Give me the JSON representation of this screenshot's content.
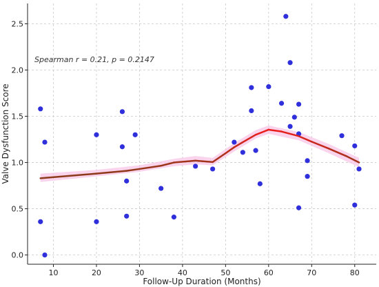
{
  "chart_data": {
    "type": "scatter",
    "title": "",
    "xlabel": "Follow-Up Duration (Months)",
    "ylabel": "Valve Dysfunction Score",
    "xlim": [
      4,
      85
    ],
    "ylim": [
      -0.1,
      2.72
    ],
    "xticks": [
      10,
      20,
      30,
      40,
      50,
      60,
      70,
      80
    ],
    "yticks": [
      0.0,
      0.5,
      1.0,
      1.5,
      2.0,
      2.5
    ],
    "ytick_labels": [
      "0.0",
      "0.5",
      "1.0",
      "1.5",
      "2.0",
      "2.5"
    ],
    "grid": true,
    "annotation": "Spearman r = 0.21, p = 0.2147",
    "point_color": "#2f2fdc",
    "points": [
      {
        "x": 7,
        "y": 1.58
      },
      {
        "x": 8,
        "y": 1.22
      },
      {
        "x": 7,
        "y": 0.36
      },
      {
        "x": 8,
        "y": 0.0
      },
      {
        "x": 20,
        "y": 1.3
      },
      {
        "x": 20,
        "y": 0.36
      },
      {
        "x": 26,
        "y": 1.55
      },
      {
        "x": 26,
        "y": 1.17
      },
      {
        "x": 27,
        "y": 0.8
      },
      {
        "x": 27,
        "y": 0.42
      },
      {
        "x": 29,
        "y": 1.3
      },
      {
        "x": 35,
        "y": 0.72
      },
      {
        "x": 38,
        "y": 0.41
      },
      {
        "x": 43,
        "y": 0.96
      },
      {
        "x": 47,
        "y": 0.93
      },
      {
        "x": 52,
        "y": 1.22
      },
      {
        "x": 54,
        "y": 1.11
      },
      {
        "x": 56,
        "y": 1.81
      },
      {
        "x": 56,
        "y": 1.56
      },
      {
        "x": 57,
        "y": 1.13
      },
      {
        "x": 58,
        "y": 0.77
      },
      {
        "x": 60,
        "y": 1.82
      },
      {
        "x": 63,
        "y": 1.64
      },
      {
        "x": 64,
        "y": 2.58
      },
      {
        "x": 65,
        "y": 2.08
      },
      {
        "x": 65,
        "y": 1.39
      },
      {
        "x": 66,
        "y": 1.49
      },
      {
        "x": 67,
        "y": 1.63
      },
      {
        "x": 67,
        "y": 1.31
      },
      {
        "x": 67,
        "y": 0.51
      },
      {
        "x": 69,
        "y": 1.02
      },
      {
        "x": 69,
        "y": 0.85
      },
      {
        "x": 77,
        "y": 1.29
      },
      {
        "x": 80,
        "y": 1.18
      },
      {
        "x": 80,
        "y": 0.54
      },
      {
        "x": 81,
        "y": 0.93
      }
    ],
    "trend": {
      "colors": {
        "low": "#8b3a1a",
        "high": "#ee1c1c",
        "band": "#f7c6e6"
      },
      "points": [
        {
          "x": 7,
          "y": 0.83
        },
        {
          "x": 20,
          "y": 0.88
        },
        {
          "x": 27,
          "y": 0.91
        },
        {
          "x": 30,
          "y": 0.93
        },
        {
          "x": 35,
          "y": 0.965
        },
        {
          "x": 38,
          "y": 1.0
        },
        {
          "x": 43,
          "y": 1.02
        },
        {
          "x": 47,
          "y": 1.005
        },
        {
          "x": 50,
          "y": 1.1
        },
        {
          "x": 52,
          "y": 1.165
        },
        {
          "x": 54,
          "y": 1.22
        },
        {
          "x": 57,
          "y": 1.3
        },
        {
          "x": 60,
          "y": 1.355
        },
        {
          "x": 63,
          "y": 1.335
        },
        {
          "x": 67,
          "y": 1.285
        },
        {
          "x": 70,
          "y": 1.225
        },
        {
          "x": 74,
          "y": 1.15
        },
        {
          "x": 78,
          "y": 1.07
        },
        {
          "x": 81,
          "y": 1.0
        }
      ],
      "band": [
        {
          "x": 7,
          "lo": 0.79,
          "hi": 0.88
        },
        {
          "x": 20,
          "lo": 0.85,
          "hi": 0.92
        },
        {
          "x": 30,
          "lo": 0.9,
          "hi": 0.97
        },
        {
          "x": 38,
          "lo": 0.96,
          "hi": 1.04
        },
        {
          "x": 43,
          "lo": 0.98,
          "hi": 1.07
        },
        {
          "x": 47,
          "lo": 0.97,
          "hi": 1.05
        },
        {
          "x": 52,
          "lo": 1.12,
          "hi": 1.21
        },
        {
          "x": 57,
          "lo": 1.26,
          "hi": 1.35
        },
        {
          "x": 60,
          "lo": 1.31,
          "hi": 1.4
        },
        {
          "x": 67,
          "lo": 1.24,
          "hi": 1.33
        },
        {
          "x": 74,
          "lo": 1.1,
          "hi": 1.2
        },
        {
          "x": 81,
          "lo": 0.95,
          "hi": 1.05
        }
      ]
    }
  }
}
